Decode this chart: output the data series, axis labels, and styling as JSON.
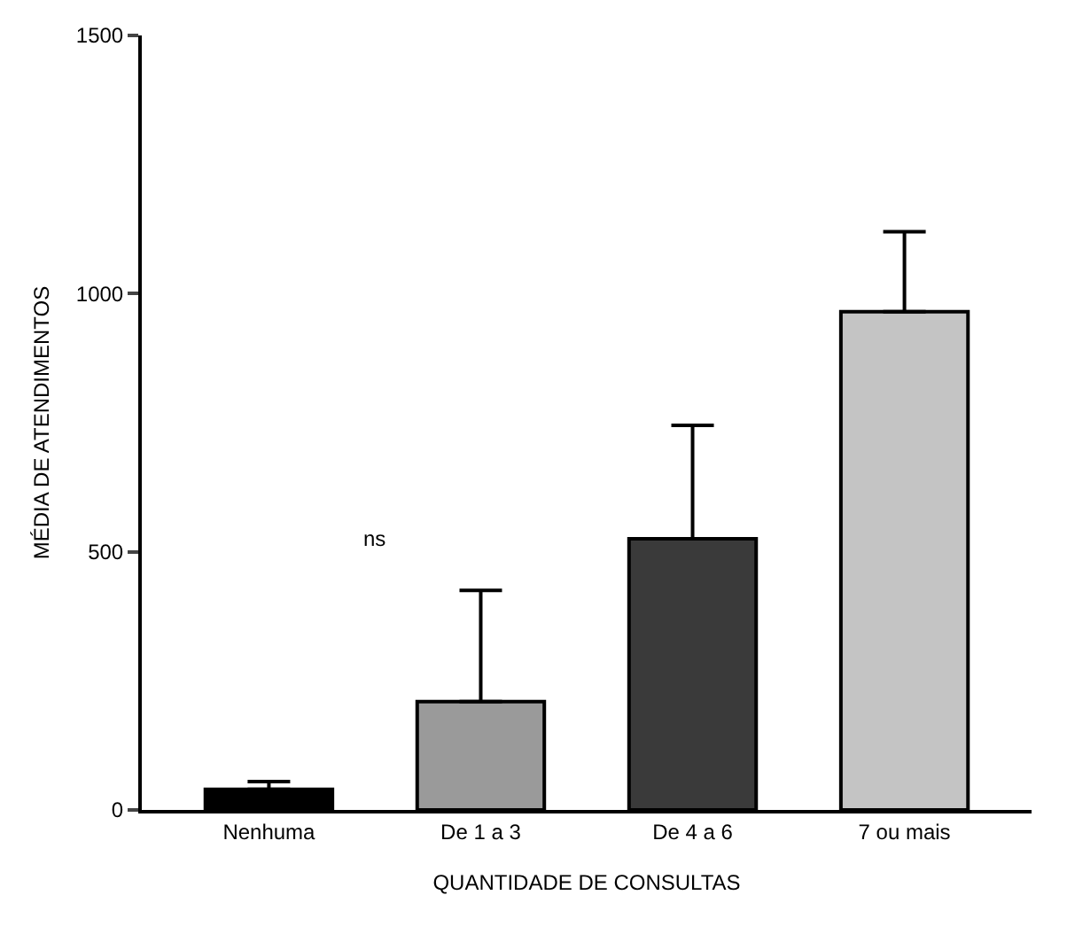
{
  "chart_data": {
    "type": "bar",
    "xlabel": "QUANTIDADE DE CONSULTAS",
    "ylabel": "MÉDIA DE ATENDIMENTOS",
    "categories": [
      "Nenhuma",
      "De 1 a 3",
      "De 4 a 6",
      "7 ou mais"
    ],
    "values": [
      40,
      210,
      525,
      965
    ],
    "colors": [
      "#000000",
      "#9a9a9a",
      "#3a3a3a",
      "#c4c4c4"
    ],
    "errors": [
      [
        40,
        55
      ],
      [
        210,
        425
      ],
      [
        525,
        745
      ],
      [
        965,
        1120
      ]
    ],
    "ylim": [
      0,
      1500
    ],
    "yticks": [
      0,
      500,
      1000,
      1500
    ],
    "legend": false,
    "annotations": [
      "ns"
    ]
  }
}
